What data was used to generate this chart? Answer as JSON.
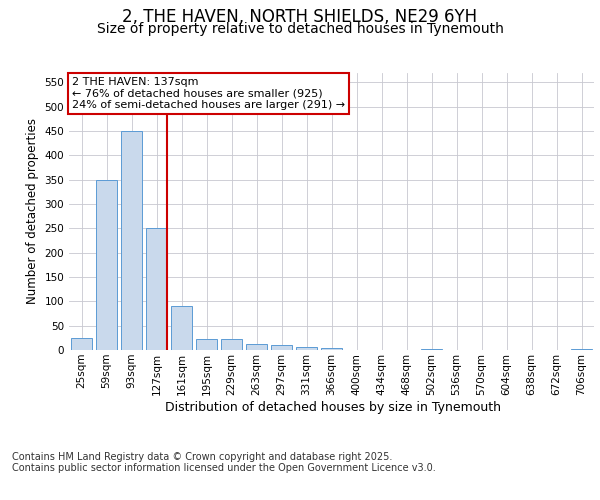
{
  "title": "2, THE HAVEN, NORTH SHIELDS, NE29 6YH",
  "subtitle": "Size of property relative to detached houses in Tynemouth",
  "xlabel": "Distribution of detached houses by size in Tynemouth",
  "ylabel": "Number of detached properties",
  "categories": [
    "25sqm",
    "59sqm",
    "93sqm",
    "127sqm",
    "161sqm",
    "195sqm",
    "229sqm",
    "263sqm",
    "297sqm",
    "331sqm",
    "366sqm",
    "400sqm",
    "434sqm",
    "468sqm",
    "502sqm",
    "536sqm",
    "570sqm",
    "604sqm",
    "638sqm",
    "672sqm",
    "706sqm"
  ],
  "values": [
    25,
    350,
    450,
    250,
    90,
    22,
    22,
    13,
    10,
    7,
    5,
    0,
    0,
    0,
    3,
    0,
    0,
    0,
    0,
    0,
    3
  ],
  "bar_color": "#c9d9ec",
  "bar_edge_color": "#5b9bd5",
  "grid_color": "#c8c8d0",
  "background_color": "#ffffff",
  "vline_index": 3,
  "vline_color": "#cc0000",
  "annotation_text": "2 THE HAVEN: 137sqm\n← 76% of detached houses are smaller (925)\n24% of semi-detached houses are larger (291) →",
  "annotation_box_color": "#ffffff",
  "annotation_box_edge": "#cc0000",
  "footer_text": "Contains HM Land Registry data © Crown copyright and database right 2025.\nContains public sector information licensed under the Open Government Licence v3.0.",
  "ylim": [
    0,
    570
  ],
  "yticks": [
    0,
    50,
    100,
    150,
    200,
    250,
    300,
    350,
    400,
    450,
    500,
    550
  ],
  "title_fontsize": 12,
  "subtitle_fontsize": 10,
  "xlabel_fontsize": 9,
  "ylabel_fontsize": 8.5,
  "tick_fontsize": 7.5,
  "footer_fontsize": 7,
  "annotation_fontsize": 8
}
